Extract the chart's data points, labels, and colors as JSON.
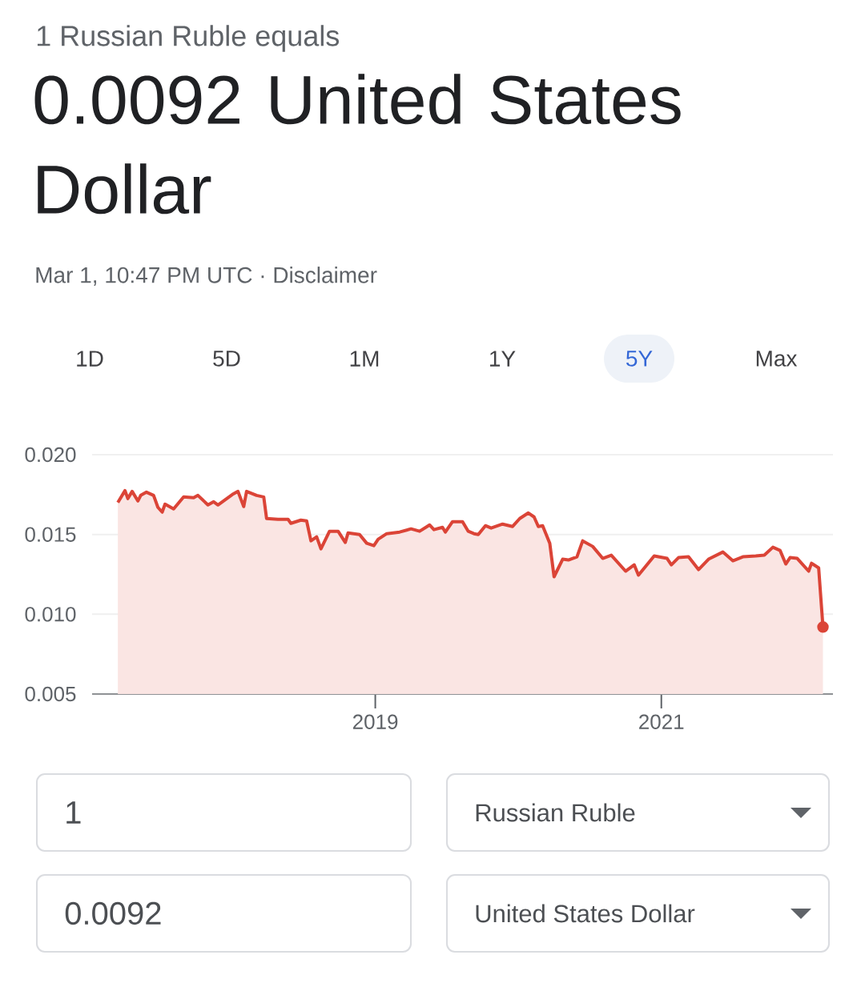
{
  "chart_data": {
    "type": "area",
    "title": "1 Russian Ruble equals",
    "subtitle": "0.0092 United States Dollar",
    "annotations": [
      "Mar 1, 10:47 PM UTC · Disclaimer",
      "1D",
      "5D",
      "1M",
      "1Y",
      "5Y",
      "Max",
      "1",
      "Russian Ruble",
      "0.0092",
      "United States Dollar"
    ],
    "x": [
      2017.2,
      2017.25,
      2017.27,
      2017.3,
      2017.34,
      2017.36,
      2017.4,
      2017.45,
      2017.48,
      2017.51,
      2017.53,
      2017.59,
      2017.66,
      2017.73,
      2017.76,
      2017.83,
      2017.87,
      2017.9,
      2018.0,
      2018.04,
      2018.08,
      2018.1,
      2018.17,
      2018.22,
      2018.24,
      2018.32,
      2018.39,
      2018.41,
      2018.48,
      2018.52,
      2018.55,
      2018.59,
      2018.62,
      2018.68,
      2018.74,
      2018.79,
      2018.81,
      2018.89,
      2018.94,
      2018.99,
      2019.02,
      2019.08,
      2019.17,
      2019.25,
      2019.31,
      2019.38,
      2019.41,
      2019.47,
      2019.49,
      2019.54,
      2019.61,
      2019.65,
      2019.69,
      2019.72,
      2019.77,
      2019.81,
      2019.89,
      2019.96,
      2020.01,
      2020.07,
      2020.11,
      2020.14,
      2020.17,
      2020.22,
      2020.25,
      2020.31,
      2020.35,
      2020.41,
      2020.45,
      2020.52,
      2020.59,
      2020.65,
      2020.75,
      2020.81,
      2020.84,
      2020.95,
      2021.04,
      2021.07,
      2021.12,
      2021.19,
      2021.26,
      2021.33,
      2021.43,
      2021.5,
      2021.57,
      2021.66,
      2021.72,
      2021.78,
      2021.83,
      2021.87,
      2021.9,
      2021.95,
      2022.03,
      2022.05,
      2022.1,
      2022.13
    ],
    "series": [
      {
        "color": "#db4437",
        "values": [
          0.017,
          0.01775,
          0.01725,
          0.0177,
          0.0171,
          0.01745,
          0.01765,
          0.01745,
          0.0167,
          0.0164,
          0.0169,
          0.0166,
          0.01735,
          0.0173,
          0.01745,
          0.01685,
          0.01705,
          0.01685,
          0.0175,
          0.0177,
          0.01675,
          0.0177,
          0.01745,
          0.01735,
          0.016,
          0.01595,
          0.01595,
          0.0157,
          0.0159,
          0.01585,
          0.0146,
          0.01485,
          0.0141,
          0.0152,
          0.0152,
          0.0145,
          0.0151,
          0.015,
          0.01445,
          0.0143,
          0.0147,
          0.01505,
          0.01515,
          0.01535,
          0.0152,
          0.0156,
          0.0153,
          0.01545,
          0.01515,
          0.0158,
          0.0158,
          0.0152,
          0.01505,
          0.015,
          0.01555,
          0.0154,
          0.01565,
          0.0155,
          0.016,
          0.01635,
          0.0161,
          0.0155,
          0.01555,
          0.01445,
          0.01235,
          0.01345,
          0.0134,
          0.0136,
          0.0146,
          0.01425,
          0.0135,
          0.0137,
          0.0127,
          0.0131,
          0.01245,
          0.01365,
          0.0135,
          0.0131,
          0.01355,
          0.0136,
          0.0128,
          0.01345,
          0.0139,
          0.01335,
          0.0136,
          0.01365,
          0.0137,
          0.0142,
          0.014,
          0.01315,
          0.01355,
          0.0135,
          0.0127,
          0.0132,
          0.0129,
          0.0092
        ]
      }
    ],
    "xlim": [
      2017.02,
      2022.2
    ],
    "ylim": [
      0.005,
      0.02
    ],
    "xticks": [
      2019,
      2021
    ],
    "yticks": [
      {
        "value": 0.005,
        "label": "0.005"
      },
      {
        "value": 0.01,
        "label": "0.010"
      },
      {
        "value": 0.015,
        "label": "0.015"
      },
      {
        "value": 0.02,
        "label": "0.020"
      }
    ],
    "grid": "y"
  }
}
